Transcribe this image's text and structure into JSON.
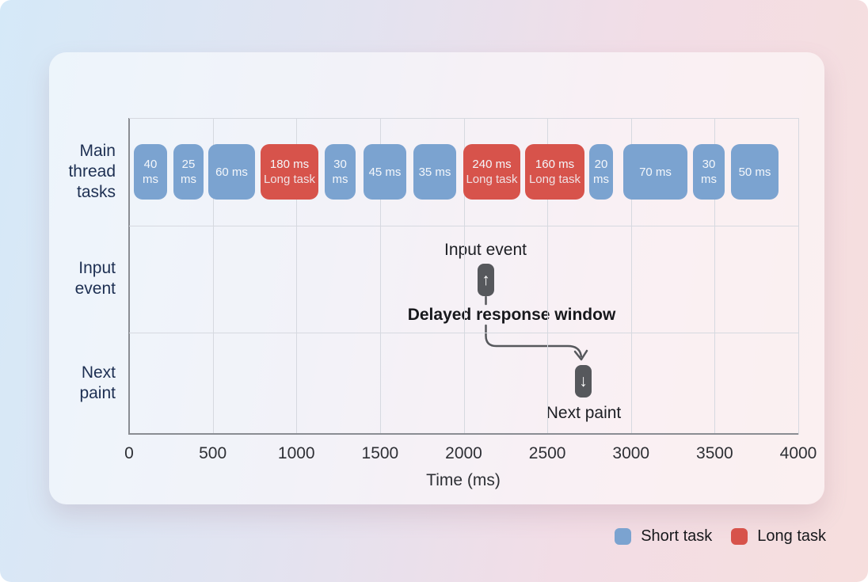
{
  "chart_data": {
    "type": "bar",
    "subtype": "main-thread-task-timeline",
    "title": "",
    "xlabel": "Time (ms)",
    "xlim": [
      0,
      4000
    ],
    "grid": true,
    "x_ticks": [
      {
        "value": 0,
        "label": "0"
      },
      {
        "value": 500,
        "label": "500"
      },
      {
        "value": 1000,
        "label": "1000"
      },
      {
        "value": 1500,
        "label": "1500"
      },
      {
        "value": 2000,
        "label": "2000"
      },
      {
        "value": 2500,
        "label": "2500"
      },
      {
        "value": 3000,
        "label": "3000"
      },
      {
        "value": 3500,
        "label": "3500"
      },
      {
        "value": 4000,
        "label": "4000"
      }
    ],
    "rows": [
      {
        "label": "Main\nthread\ntasks",
        "center_y": 217
      },
      {
        "label": "Input\nevent",
        "center_y": 352
      },
      {
        "label": "Next\npaint",
        "center_y": 484
      }
    ],
    "tasks": [
      {
        "duration_ms": 40,
        "kind": "short",
        "lines": [
          "40",
          "ms"
        ],
        "x": 169,
        "w": 42
      },
      {
        "duration_ms": 25,
        "kind": "short",
        "lines": [
          "25",
          "ms"
        ],
        "x": 219,
        "w": 38
      },
      {
        "duration_ms": 60,
        "kind": "short",
        "lines": [
          "60 ms"
        ],
        "x": 263,
        "w": 59
      },
      {
        "duration_ms": 180,
        "kind": "long",
        "lines": [
          "180 ms",
          "Long task"
        ],
        "x": 329,
        "w": 73
      },
      {
        "duration_ms": 30,
        "kind": "short",
        "lines": [
          "30",
          "ms"
        ],
        "x": 410,
        "w": 39
      },
      {
        "duration_ms": 45,
        "kind": "short",
        "lines": [
          "45 ms"
        ],
        "x": 459,
        "w": 54
      },
      {
        "duration_ms": 35,
        "kind": "short",
        "lines": [
          "35 ms"
        ],
        "x": 522,
        "w": 54
      },
      {
        "duration_ms": 240,
        "kind": "long",
        "lines": [
          "240 ms",
          "Long task"
        ],
        "x": 585,
        "w": 72
      },
      {
        "duration_ms": 160,
        "kind": "long",
        "lines": [
          "160 ms",
          "Long task"
        ],
        "x": 663,
        "w": 75
      },
      {
        "duration_ms": 20,
        "kind": "short",
        "lines": [
          "20",
          "ms"
        ],
        "x": 744,
        "w": 30
      },
      {
        "duration_ms": 70,
        "kind": "short",
        "lines": [
          "70 ms"
        ],
        "x": 787,
        "w": 81
      },
      {
        "duration_ms": 30,
        "kind": "short",
        "lines": [
          "30",
          "ms"
        ],
        "x": 875,
        "w": 40
      },
      {
        "duration_ms": 50,
        "kind": "short",
        "lines": [
          "50 ms"
        ],
        "x": 923,
        "w": 60
      }
    ],
    "annotations": {
      "input_event": "Input event",
      "delayed_response_window": "Delayed response window",
      "next_paint": "Next paint",
      "up_arrow_icon": "↑",
      "down_arrow_icon": "↓"
    },
    "colors": {
      "short_task": "#7ba3d0",
      "long_task": "#d7534b",
      "marker": "#56585c",
      "row_label": "#1d2f52"
    },
    "legend_position": "bottom-right-outside-card"
  },
  "legend": {
    "items": [
      {
        "label": "Short task",
        "color": "#7ba3d0",
        "kind": "short"
      },
      {
        "label": "Long task",
        "color": "#d7534b",
        "kind": "long"
      }
    ]
  }
}
